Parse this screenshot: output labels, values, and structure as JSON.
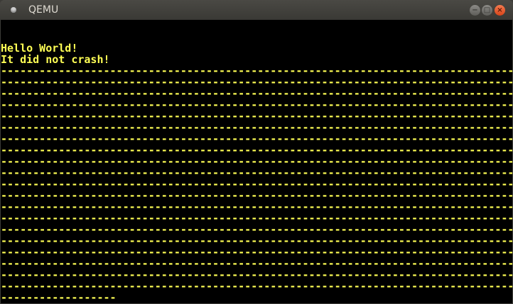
{
  "window": {
    "title": "QEMU",
    "minimize_label": "−",
    "maximize_label": "□",
    "close_label": "×"
  },
  "colors": {
    "text": "#ffff55",
    "background": "#000000",
    "close": "#e95420"
  },
  "screen": {
    "lines": [
      "",
      "",
      "Hello World!",
      "It did not crash!",
      "--------------------------------------------------------------------------------",
      "--------------------------------------------------------------------------------",
      "--------------------------------------------------------------------------------",
      "--------------------------------------------------------------------------------",
      "--------------------------------------------------------------------------------",
      "--------------------------------------------------------------------------------",
      "--------------------------------------------------------------------------------",
      "--------------------------------------------------------------------------------",
      "--------------------------------------------------------------------------------",
      "--------------------------------------------------------------------------------",
      "--------------------------------------------------------------------------------",
      "--------------------------------------------------------------------------------",
      "--------------------------------------------------------------------------------",
      "--------------------------------------------------------------------------------",
      "--------------------------------------------------------------------------------",
      "--------------------------------------------------------------------------------",
      "--------------------------------------------------------------------------------",
      "--------------------------------------------------------------------------------",
      "--------------------------------------------------------------------------------",
      "--------------------------------------------------------------------------------",
      "------------------"
    ]
  }
}
